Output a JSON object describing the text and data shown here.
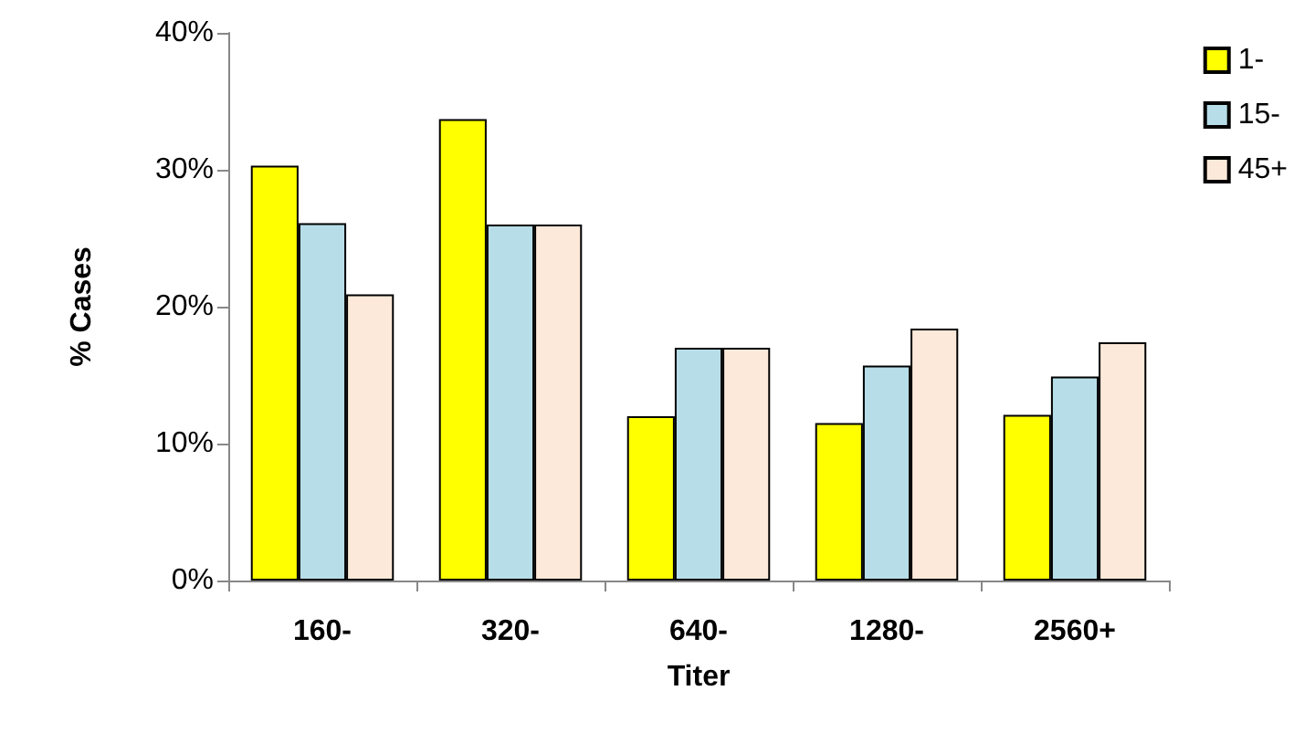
{
  "chart_data": {
    "type": "bar",
    "xlabel": "Titer",
    "ylabel": "% Cases",
    "categories": [
      "160-",
      "320-",
      "640-",
      "1280-",
      "2560+"
    ],
    "series": [
      {
        "name": "1-",
        "color": "#ffff00",
        "values": [
          30.3,
          33.7,
          12.0,
          11.5,
          12.1
        ]
      },
      {
        "name": "15-",
        "color": "#b7dee8",
        "values": [
          26.1,
          26.0,
          17.0,
          15.7,
          14.9
        ]
      },
      {
        "name": "45+",
        "color": "#fde9d9",
        "values": [
          20.9,
          26.0,
          17.0,
          18.4,
          17.4
        ]
      }
    ],
    "ylim": [
      0,
      40
    ],
    "yticks": [
      {
        "value": 0,
        "label": "0%"
      },
      {
        "value": 10,
        "label": "10%"
      },
      {
        "value": 20,
        "label": "20%"
      },
      {
        "value": 30,
        "label": "30%"
      },
      {
        "value": 40,
        "label": "40%"
      }
    ],
    "grid": false,
    "legend": "top right"
  }
}
